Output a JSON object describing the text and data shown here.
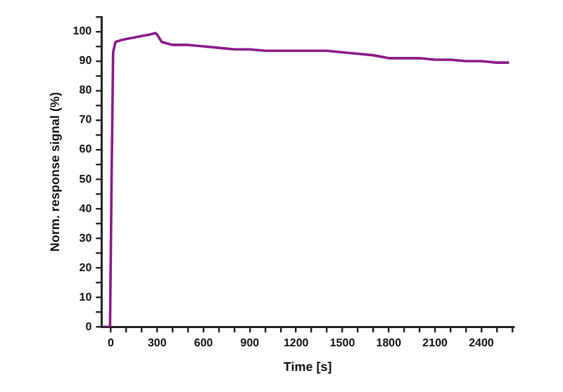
{
  "chart_data": {
    "type": "line",
    "xlabel": "Time [s]",
    "ylabel": "Norm. response signal (%)",
    "x": [
      -50,
      -5,
      5,
      15,
      30,
      60,
      100,
      150,
      200,
      250,
      290,
      300,
      330,
      400,
      500,
      600,
      700,
      800,
      900,
      1000,
      1100,
      1200,
      1300,
      1400,
      1500,
      1600,
      1700,
      1800,
      1900,
      2000,
      2100,
      2200,
      2300,
      2400,
      2500,
      2580
    ],
    "series": [
      {
        "color": "#8b1a89",
        "values": [
          0,
          0,
          50,
          93,
          96.5,
          97,
          97.5,
          98,
          98.5,
          99,
          99.5,
          99,
          96.5,
          95.5,
          95.5,
          95,
          94.5,
          94,
          94,
          93.5,
          93.5,
          93.5,
          93.5,
          93.5,
          93,
          92.5,
          92,
          91,
          91,
          91,
          90.5,
          90.5,
          90,
          90,
          89.5,
          89.5
        ]
      }
    ],
    "xlim": [
      -60,
      2610
    ],
    "xticks": [
      0,
      {
        "value": 100,
        "label": null
      },
      {
        "value": 200,
        "label": null
      },
      300,
      {
        "value": 400,
        "label": null
      },
      {
        "value": 500,
        "label": null
      },
      600,
      {
        "value": 700,
        "label": null
      },
      {
        "value": 800,
        "label": null
      },
      900,
      {
        "value": 1000,
        "label": null
      },
      {
        "value": 1100,
        "label": null
      },
      1200,
      {
        "value": 1300,
        "label": null
      },
      {
        "value": 1400,
        "label": null
      },
      1500,
      {
        "value": 1600,
        "label": null
      },
      {
        "value": 1700,
        "label": null
      },
      1800,
      {
        "value": 1900,
        "label": null
      },
      {
        "value": 2000,
        "label": null
      },
      2100,
      {
        "value": 2200,
        "label": null
      },
      {
        "value": 2300,
        "label": null
      },
      2400,
      {
        "value": 2500,
        "label": null
      },
      {
        "value": 2600,
        "label": null
      }
    ],
    "ylim": [
      0,
      105
    ],
    "yticks": [
      0,
      {
        "value": 5,
        "label": null
      },
      10,
      {
        "value": 15,
        "label": null
      },
      20,
      {
        "value": 25,
        "label": null
      },
      30,
      {
        "value": 35,
        "label": null
      },
      40,
      {
        "value": 45,
        "label": null
      },
      50,
      {
        "value": 55,
        "label": null
      },
      60,
      {
        "value": 65,
        "label": null
      },
      70,
      {
        "value": 75,
        "label": null
      },
      80,
      {
        "value": 85,
        "label": null
      },
      90,
      {
        "value": 95,
        "label": null
      },
      100,
      {
        "value": 105,
        "label": null
      }
    ],
    "grid": false,
    "legend": false,
    "marker": "none",
    "line_style": "solid"
  }
}
